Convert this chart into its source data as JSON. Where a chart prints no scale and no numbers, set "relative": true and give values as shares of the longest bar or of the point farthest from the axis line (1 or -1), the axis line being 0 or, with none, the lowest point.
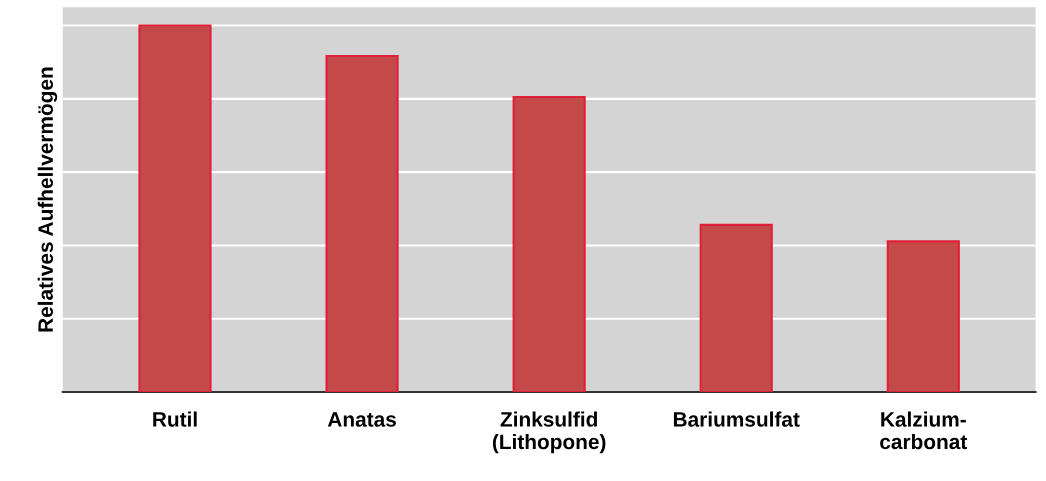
{
  "chart_data": {
    "type": "bar",
    "ylabel": "Relatives Aufhellvermögen",
    "categories": [
      "Rutil",
      "Anatas",
      "Zinksulfid\n(Lithopone)",
      "Bariumsulfat",
      "Kalzium-\ncarbonat"
    ],
    "values": [
      1,
      0.917,
      0.805,
      0.456,
      0.411
    ],
    "color": "#c44a4a",
    "relative": true,
    "grid": "y",
    "legend": false
  }
}
